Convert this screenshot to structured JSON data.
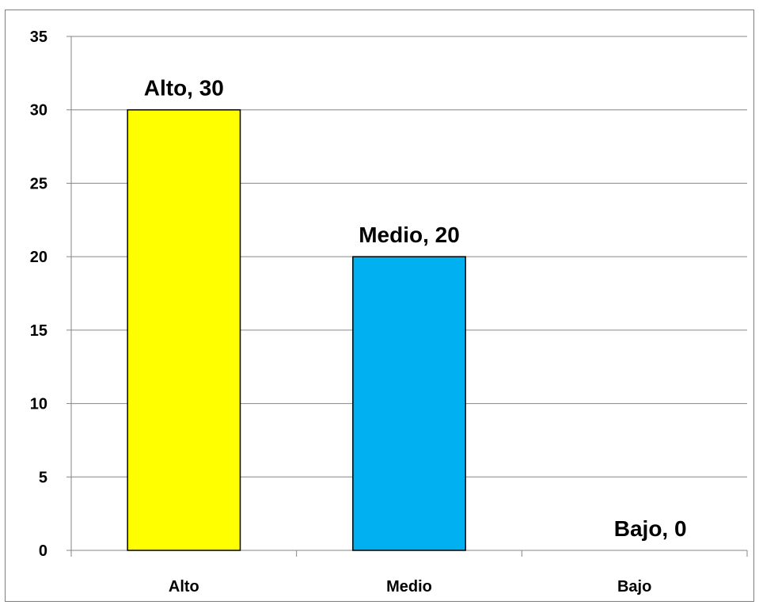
{
  "chart_data": {
    "type": "bar",
    "categories": [
      "Alto",
      "Medio",
      "Bajo"
    ],
    "values": [
      30,
      20,
      0
    ],
    "colors": [
      "#ffff00",
      "#00b0f0",
      "#a6a6a6"
    ],
    "bar_outline": "#000000",
    "data_labels": [
      "Alto, 30",
      "Medio, 20",
      "Bajo, 0"
    ],
    "y_ticks": [
      0,
      5,
      10,
      15,
      20,
      25,
      30,
      35
    ],
    "ylim": [
      0,
      35
    ],
    "gridlines": true,
    "gridline_color": "#868686",
    "legend": "none"
  }
}
